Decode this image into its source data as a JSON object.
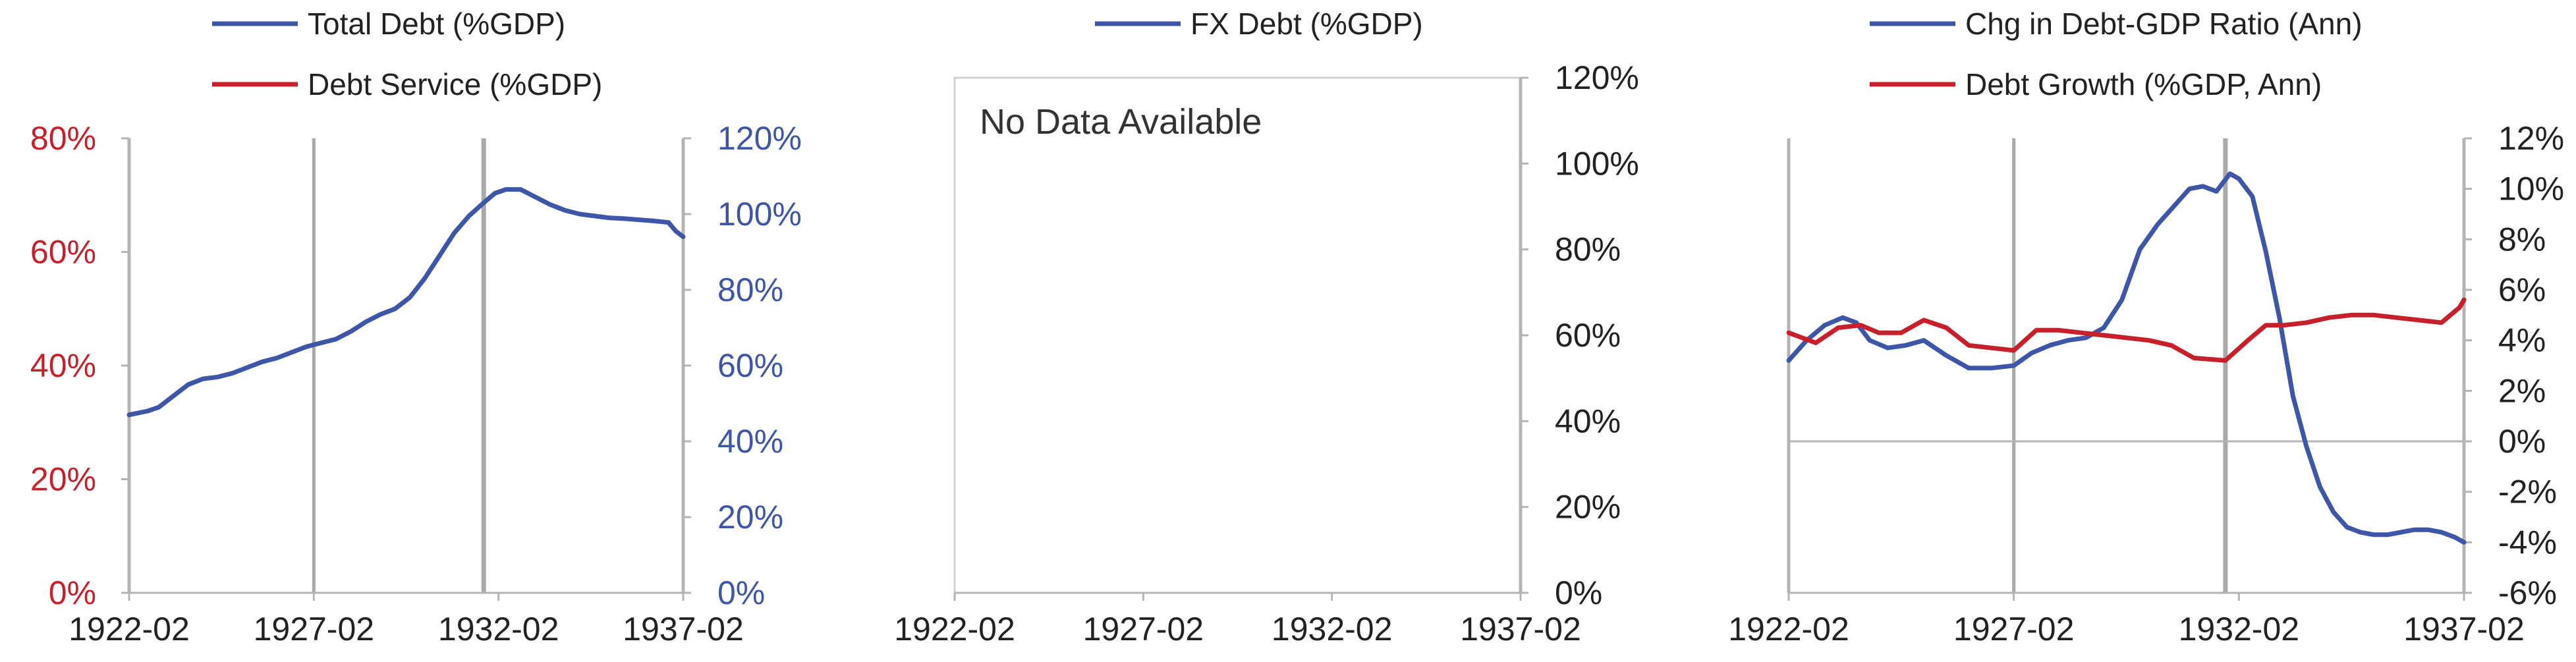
{
  "colors": {
    "blue": "#3d56a8",
    "red": "#c8202a",
    "axis": "#b4b4b4",
    "gridline": "#a9a9a9",
    "frame": "#cfcfcf",
    "text": "#222222"
  },
  "chart_data": [
    {
      "type": "line",
      "legend": [
        "Total Debt (%GDP)",
        "Debt Service (%GDP)"
      ],
      "legend_placement": "top-center",
      "x_ticks": [
        "1922-02",
        "1927-02",
        "1932-02",
        "1937-02"
      ],
      "xlim": [
        1922.0,
        1937.0
      ],
      "left_axis": {
        "ticks": [
          "0%",
          "20%",
          "40%",
          "60%",
          "80%"
        ],
        "ylim": [
          0,
          80
        ],
        "color": "red"
      },
      "right_axis": {
        "ticks": [
          "0%",
          "20%",
          "40%",
          "60%",
          "80%",
          "100%",
          "120%"
        ],
        "ylim": [
          0,
          120
        ],
        "color": "blue"
      },
      "vertical_markers": [
        1927.0,
        1931.6
      ],
      "series": [
        {
          "name": "Total Debt (%GDP)",
          "axis": "right",
          "color": "blue",
          "x": [
            1922.0,
            1922.5,
            1922.8,
            1923.2,
            1923.6,
            1924.0,
            1924.4,
            1924.8,
            1925.2,
            1925.6,
            1926.0,
            1926.4,
            1926.8,
            1927.2,
            1927.6,
            1928.0,
            1928.4,
            1928.8,
            1929.2,
            1929.6,
            1930.0,
            1930.4,
            1930.8,
            1931.2,
            1931.6,
            1931.9,
            1932.2,
            1932.6,
            1933.0,
            1933.4,
            1933.8,
            1934.2,
            1934.6,
            1935.0,
            1935.4,
            1935.8,
            1936.2,
            1936.6,
            1936.8,
            1937.0
          ],
          "values": [
            47,
            48,
            49,
            52,
            55,
            56.5,
            57,
            58,
            59.5,
            61,
            62,
            63.5,
            65,
            66,
            67,
            69,
            71.5,
            73.5,
            75,
            78,
            83,
            89,
            95,
            99.5,
            103,
            105.5,
            106.5,
            106.5,
            104.5,
            102.5,
            101,
            100,
            99.5,
            99,
            98.8,
            98.5,
            98.2,
            97.8,
            95.5,
            94
          ]
        },
        {
          "name": "Debt Service (%GDP)",
          "axis": "left",
          "color": "red",
          "x": [],
          "values": []
        }
      ]
    },
    {
      "type": "line",
      "legend": [
        "FX Debt (%GDP)"
      ],
      "legend_placement": "top-center",
      "annotation": "No Data Available",
      "x_ticks": [
        "1922-02",
        "1927-02",
        "1932-02",
        "1937-02"
      ],
      "xlim": [
        1922.0,
        1937.0
      ],
      "right_axis": {
        "ticks": [
          "0%",
          "20%",
          "40%",
          "60%",
          "80%",
          "100%",
          "120%"
        ],
        "ylim": [
          0,
          120
        ],
        "color": "dark"
      },
      "series": [
        {
          "name": "FX Debt (%GDP)",
          "axis": "right",
          "color": "blue",
          "x": [],
          "values": []
        }
      ]
    },
    {
      "type": "line",
      "legend": [
        "Chg in Debt-GDP Ratio (Ann)",
        "Debt Growth (%GDP, Ann)"
      ],
      "legend_placement": "top-center",
      "x_ticks": [
        "1922-02",
        "1927-02",
        "1932-02",
        "1937-02"
      ],
      "xlim": [
        1922.0,
        1937.0
      ],
      "right_axis": {
        "ticks": [
          "-6%",
          "-4%",
          "-2%",
          "0%",
          "2%",
          "4%",
          "6%",
          "8%",
          "10%",
          "12%"
        ],
        "ylim": [
          -6,
          12
        ],
        "color": "dark"
      },
      "zero_line": true,
      "vertical_markers": [
        1927.0,
        1931.7
      ],
      "series": [
        {
          "name": "Chg in Debt-GDP Ratio (Ann)",
          "axis": "right",
          "color": "blue",
          "x": [
            1922.0,
            1922.4,
            1922.8,
            1923.2,
            1923.5,
            1923.8,
            1924.2,
            1924.6,
            1925.0,
            1925.5,
            1926.0,
            1926.5,
            1927.0,
            1927.4,
            1927.8,
            1928.2,
            1928.6,
            1929.0,
            1929.4,
            1929.8,
            1930.2,
            1930.6,
            1930.9,
            1931.2,
            1931.5,
            1931.8,
            1932.0,
            1932.3,
            1932.6,
            1932.9,
            1933.2,
            1933.5,
            1933.8,
            1934.1,
            1934.4,
            1934.7,
            1935.0,
            1935.3,
            1935.6,
            1935.9,
            1936.2,
            1936.5,
            1936.8,
            1937.0
          ],
          "values": [
            3.2,
            4.0,
            4.6,
            4.9,
            4.7,
            4.0,
            3.7,
            3.8,
            4.0,
            3.4,
            2.9,
            2.9,
            3.0,
            3.5,
            3.8,
            4.0,
            4.1,
            4.5,
            5.6,
            7.6,
            8.6,
            9.4,
            10.0,
            10.1,
            9.9,
            10.6,
            10.4,
            9.7,
            7.5,
            4.9,
            1.8,
            -0.2,
            -1.8,
            -2.8,
            -3.4,
            -3.6,
            -3.7,
            -3.7,
            -3.6,
            -3.5,
            -3.5,
            -3.6,
            -3.8,
            -4.0
          ]
        },
        {
          "name": "Debt Growth (%GDP, Ann)",
          "axis": "right",
          "color": "red",
          "x": [
            1922.0,
            1922.6,
            1923.1,
            1923.6,
            1924.0,
            1924.5,
            1925.0,
            1925.5,
            1926.0,
            1926.5,
            1927.0,
            1927.5,
            1928.0,
            1928.5,
            1929.0,
            1929.5,
            1930.0,
            1930.5,
            1931.0,
            1931.7,
            1932.2,
            1932.6,
            1933.0,
            1933.5,
            1934.0,
            1934.5,
            1935.0,
            1935.5,
            1936.0,
            1936.5,
            1936.9,
            1937.0
          ],
          "values": [
            4.3,
            3.9,
            4.5,
            4.6,
            4.3,
            4.3,
            4.8,
            4.5,
            3.8,
            3.7,
            3.6,
            4.4,
            4.4,
            4.3,
            4.2,
            4.1,
            4.0,
            3.8,
            3.3,
            3.2,
            4.0,
            4.6,
            4.6,
            4.7,
            4.9,
            5.0,
            5.0,
            4.9,
            4.8,
            4.7,
            5.3,
            5.6
          ]
        }
      ]
    }
  ]
}
